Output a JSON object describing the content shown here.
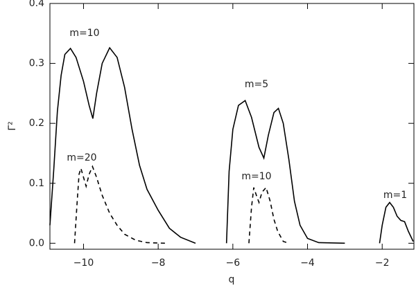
{
  "chart_data": {
    "type": "line",
    "xlabel": "q",
    "ylabel": "Γ²",
    "xlim": [
      -10.9,
      -1.15
    ],
    "ylim": [
      -0.01,
      0.4
    ],
    "xticks": [
      {
        "value": -10,
        "label": "−10"
      },
      {
        "value": -8,
        "label": "−8"
      },
      {
        "value": -6,
        "label": "−6"
      },
      {
        "value": -4,
        "label": "−4"
      },
      {
        "value": -2,
        "label": "−2"
      }
    ],
    "yticks": [
      {
        "value": 0,
        "label": "0.0"
      },
      0.1,
      0.2,
      0.3,
      0.4
    ],
    "series": [
      {
        "color": "#000000",
        "dashed": false,
        "x": [
          -10.9,
          -10.8,
          -10.7,
          -10.6,
          -10.5,
          -10.35,
          -10.2,
          -10.0,
          -9.85,
          -9.75,
          -9.65,
          -9.5,
          -9.3,
          -9.1,
          -8.9,
          -8.7,
          -8.5,
          -8.3,
          -8.0,
          -7.7,
          -7.4,
          -7.0
        ],
        "values": [
          0.03,
          0.12,
          0.22,
          0.28,
          0.315,
          0.325,
          0.31,
          0.27,
          0.23,
          0.208,
          0.25,
          0.3,
          0.326,
          0.31,
          0.26,
          0.19,
          0.13,
          0.09,
          0.055,
          0.025,
          0.01,
          0.0
        ]
      },
      {
        "color": "#000000",
        "dashed": false,
        "x": [
          -6.17,
          -6.1,
          -6.0,
          -5.85,
          -5.67,
          -5.5,
          -5.3,
          -5.17,
          -5.05,
          -4.9,
          -4.78,
          -4.65,
          -4.5,
          -4.35,
          -4.2,
          -4.0,
          -3.7,
          -3.0
        ],
        "values": [
          0.0,
          0.12,
          0.19,
          0.23,
          0.238,
          0.21,
          0.16,
          0.142,
          0.18,
          0.218,
          0.225,
          0.2,
          0.14,
          0.07,
          0.03,
          0.008,
          0.001,
          0.0
        ]
      },
      {
        "color": "#000000",
        "dashed": false,
        "x": [
          -2.07,
          -2.0,
          -1.9,
          -1.8,
          -1.7,
          -1.6,
          -1.5,
          -1.4,
          -1.3,
          -1.17
        ],
        "values": [
          0.0,
          0.03,
          0.06,
          0.068,
          0.06,
          0.045,
          0.038,
          0.036,
          0.02,
          0.003
        ]
      },
      {
        "color": "#000000",
        "dashed": true,
        "x": [
          -10.24,
          -10.18,
          -10.12,
          -10.07,
          -10.0,
          -9.93,
          -9.85,
          -9.76,
          -9.65,
          -9.5,
          -9.3,
          -9.1,
          -8.9,
          -8.6,
          -8.3,
          -7.8
        ],
        "values": [
          0.0,
          0.06,
          0.115,
          0.125,
          0.11,
          0.095,
          0.115,
          0.128,
          0.11,
          0.08,
          0.05,
          0.03,
          0.015,
          0.005,
          0.001,
          0.0
        ]
      },
      {
        "color": "#000000",
        "dashed": true,
        "x": [
          -5.57,
          -5.5,
          -5.44,
          -5.37,
          -5.3,
          -5.22,
          -5.11,
          -5.0,
          -4.9,
          -4.8,
          -4.65,
          -4.5
        ],
        "values": [
          0.0,
          0.06,
          0.093,
          0.08,
          0.068,
          0.085,
          0.093,
          0.07,
          0.04,
          0.02,
          0.003,
          0.0
        ]
      }
    ],
    "annotations": [
      "m=10",
      "m=5",
      "m=20",
      "m=10",
      "m=1"
    ]
  }
}
